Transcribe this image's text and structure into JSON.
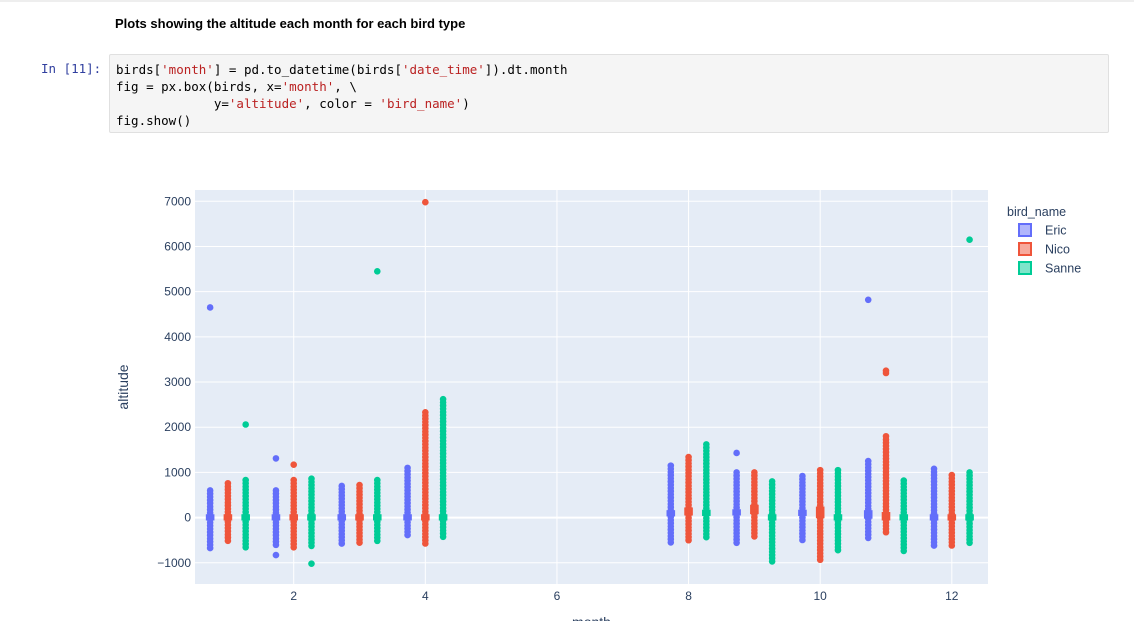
{
  "notebook": {
    "heading": "Plots showing the altitude each month for each bird type",
    "prompt": "In [11]:",
    "code_lines": [
      [
        {
          "t": "birds["
        },
        {
          "t": "'month'",
          "s": 1
        },
        {
          "t": "] = pd.to_datetime(birds["
        },
        {
          "t": "'date_time'",
          "s": 1
        },
        {
          "t": "]).dt.month"
        }
      ],
      [
        {
          "t": "fig = px.box(birds, x="
        },
        {
          "t": "'month'",
          "s": 1
        },
        {
          "t": ", \\"
        }
      ],
      [
        {
          "t": "             y="
        },
        {
          "t": "'altitude'",
          "s": 1
        },
        {
          "t": ", color = "
        },
        {
          "t": "'bird_name'",
          "s": 1
        },
        {
          "t": ")"
        }
      ],
      [
        {
          "t": "fig.show()"
        }
      ]
    ]
  },
  "chart_data": {
    "type": "box",
    "xlabel": "month",
    "ylabel": "altitude",
    "xlim": [
      0.5,
      12.55
    ],
    "ylim": [
      -1470,
      7250
    ],
    "x_ticks": [
      2,
      4,
      6,
      8,
      10,
      12
    ],
    "y_ticks": [
      -1000,
      0,
      1000,
      2000,
      3000,
      4000,
      5000,
      6000,
      7000
    ],
    "y_tick_labels": [
      "−1000",
      "0",
      "1000",
      "2000",
      "3000",
      "4000",
      "5000",
      "6000",
      "7000"
    ],
    "legend": {
      "title": "bird_name",
      "position": "top-right"
    },
    "colors": {
      "Eric": "#636efa",
      "Nico": "#ef553b",
      "Sanne": "#00cc96",
      "plot_bg": "#e5ecf6",
      "grid": "#ffffff",
      "tick_text": "#2a3f5f"
    },
    "series": [
      {
        "name": "Eric",
        "offset": -0.27,
        "boxes": [
          {
            "month": 1,
            "q1": -20,
            "median": 0,
            "q3": 30,
            "lower": -680,
            "upper": 600,
            "outliers": [
              4650
            ]
          },
          {
            "month": 2,
            "q1": -20,
            "median": 0,
            "q3": 30,
            "lower": -620,
            "upper": 600,
            "outliers": [
              -830,
              1310
            ]
          },
          {
            "month": 3,
            "q1": -20,
            "median": 0,
            "q3": 30,
            "lower": -620,
            "upper": 700,
            "outliers": []
          },
          {
            "month": 4,
            "q1": -20,
            "median": 0,
            "q3": 30,
            "lower": -420,
            "upper": 1100,
            "outliers": []
          },
          {
            "month": 8,
            "q1": 70,
            "median": 90,
            "q3": 120,
            "lower": -550,
            "upper": 1150,
            "outliers": []
          },
          {
            "month": 9,
            "q1": 90,
            "median": 110,
            "q3": 140,
            "lower": -580,
            "upper": 1000,
            "outliers": [
              1430
            ]
          },
          {
            "month": 10,
            "q1": 80,
            "median": 100,
            "q3": 130,
            "lower": -520,
            "upper": 920,
            "outliers": []
          },
          {
            "month": 11,
            "q1": 20,
            "median": 50,
            "q3": 120,
            "lower": -450,
            "upper": 1250,
            "outliers": [
              4820
            ]
          },
          {
            "month": 12,
            "q1": -20,
            "median": 0,
            "q3": 30,
            "lower": -620,
            "upper": 1080,
            "outliers": []
          }
        ]
      },
      {
        "name": "Nico",
        "offset": 0.0,
        "boxes": [
          {
            "month": 1,
            "q1": -20,
            "median": 0,
            "q3": 30,
            "lower": -560,
            "upper": 760,
            "outliers": []
          },
          {
            "month": 2,
            "q1": -20,
            "median": 0,
            "q3": 30,
            "lower": -660,
            "upper": 830,
            "outliers": [
              1170
            ]
          },
          {
            "month": 3,
            "q1": -20,
            "median": 0,
            "q3": 30,
            "lower": -600,
            "upper": 720,
            "outliers": []
          },
          {
            "month": 4,
            "q1": -20,
            "median": 0,
            "q3": 30,
            "lower": -600,
            "upper": 2330,
            "outliers": [
              6980
            ]
          },
          {
            "month": 8,
            "q1": 90,
            "median": 120,
            "q3": 180,
            "lower": -540,
            "upper": 1340,
            "outliers": []
          },
          {
            "month": 9,
            "q1": 120,
            "median": 150,
            "q3": 240,
            "lower": -440,
            "upper": 1000,
            "outliers": []
          },
          {
            "month": 10,
            "q1": 30,
            "median": 90,
            "q3": 200,
            "lower": -1000,
            "upper": 1050,
            "outliers": []
          },
          {
            "month": 11,
            "q1": -20,
            "median": 10,
            "q3": 80,
            "lower": -360,
            "upper": 1800,
            "outliers": [
              3200,
              3250
            ]
          },
          {
            "month": 12,
            "q1": -20,
            "median": 0,
            "q3": 30,
            "lower": -660,
            "upper": 940,
            "outliers": []
          }
        ]
      },
      {
        "name": "Sanne",
        "offset": 0.27,
        "boxes": [
          {
            "month": 1,
            "q1": -20,
            "median": 0,
            "q3": 30,
            "lower": -720,
            "upper": 830,
            "outliers": [
              2060
            ]
          },
          {
            "month": 2,
            "q1": -20,
            "median": 0,
            "q3": 30,
            "lower": -640,
            "upper": 860,
            "outliers": [
              -1020
            ]
          },
          {
            "month": 3,
            "q1": -20,
            "median": 0,
            "q3": 30,
            "lower": -560,
            "upper": 830,
            "outliers": [
              5450
            ]
          },
          {
            "month": 4,
            "q1": -20,
            "median": 0,
            "q3": 30,
            "lower": -450,
            "upper": 2620,
            "outliers": []
          },
          {
            "month": 8,
            "q1": 80,
            "median": 100,
            "q3": 130,
            "lower": -480,
            "upper": 1620,
            "outliers": []
          },
          {
            "month": 9,
            "q1": -20,
            "median": 0,
            "q3": 30,
            "lower": -980,
            "upper": 800,
            "outliers": []
          },
          {
            "month": 10,
            "q1": -20,
            "median": 0,
            "q3": 30,
            "lower": -770,
            "upper": 1050,
            "outliers": []
          },
          {
            "month": 11,
            "q1": -20,
            "median": 0,
            "q3": 30,
            "lower": -740,
            "upper": 820,
            "outliers": []
          },
          {
            "month": 12,
            "q1": -20,
            "median": 0,
            "q3": 30,
            "lower": -600,
            "upper": 1000,
            "outliers": [
              6150
            ]
          }
        ]
      }
    ]
  }
}
